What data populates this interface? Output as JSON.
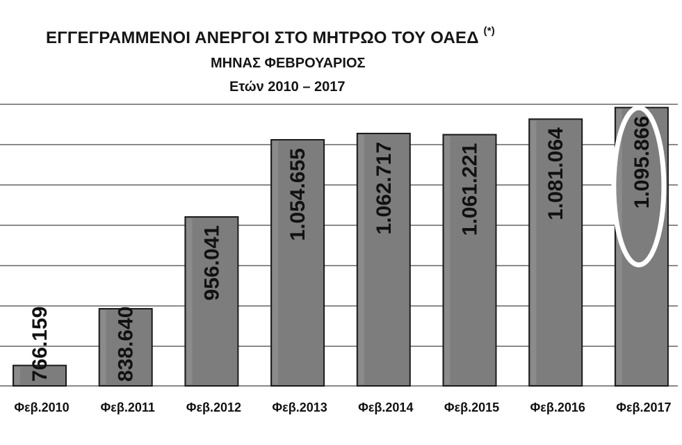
{
  "title": {
    "main": "ΕΓΓΕΓΡΑΜΜΕΝΟΙ ΑΝΕΡΓΟΙ ΣΤΟ ΜΗΤΡΩΟ ΤΟΥ ΟΑΕΔ",
    "footnote_mark": "(*)",
    "subtitle": "ΜΗΝΑΣ ΦΕΒΡΟΥΑΡΙΟΣ",
    "years": "Ετών  2010 – 2017"
  },
  "chart_data": {
    "type": "bar",
    "title": "ΕΓΓΕΓΡΑΜΜΕΝΟΙ ΑΝΕΡΓΟΙ ΣΤΟ ΜΗΤΡΩΟ ΤΟΥ ΟΑΕΔ (*)",
    "subtitle": "ΜΗΝΑΣ ΦΕΒΡΟΥΑΡΙΟΣ Ετών 2010 – 2017",
    "xlabel": "",
    "ylabel": "",
    "categories": [
      "Φεβ.2010",
      "Φεβ.2011",
      "Φεβ.2012",
      "Φεβ.2013",
      "Φεβ.2014",
      "Φεβ.2015",
      "Φεβ.2016",
      "Φεβ.2017"
    ],
    "values": [
      766159,
      838640,
      956041,
      1054655,
      1062717,
      1061221,
      1081064,
      1095866
    ],
    "value_labels": [
      "766.159",
      "838.640",
      "956.041",
      "1.054.655",
      "1.062.717",
      "1.061.221",
      "1.081.064",
      "1.095.866"
    ],
    "ylim": [
      740000,
      1100000
    ],
    "grid": true,
    "highlighted_category": "Φεβ.2017",
    "colors": {
      "bar_fill": "#7d7d7d",
      "bar_edge": "#1a1a1a",
      "grid": "#444444",
      "label": "#111111",
      "highlight_ring": "#ffffff"
    }
  }
}
